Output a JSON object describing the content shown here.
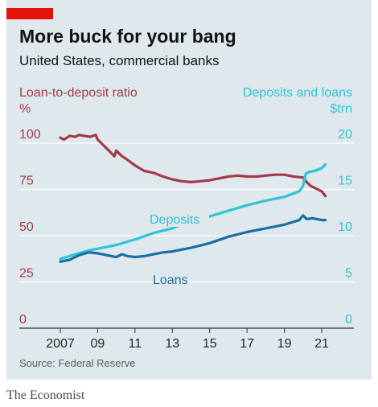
{
  "header": {
    "title": "More buck for your bang",
    "subtitle": "United States, commercial banks"
  },
  "footer": {
    "source": "Source: Federal Reserve",
    "brand": "The Economist"
  },
  "colors": {
    "ratio": "#a23a4a",
    "deposits": "#2ec3d6",
    "loans": "#1a6ea5",
    "brand_red": "#e3120b",
    "background": "#dfe9ed"
  },
  "chart_data": {
    "type": "line",
    "left_axis": {
      "label": "Loan-to-deposit ratio",
      "unit": "%",
      "ticks": [
        "100",
        "75",
        "50",
        "25",
        "0"
      ],
      "range": [
        0,
        100
      ]
    },
    "right_axis": {
      "label": "Deposits and loans",
      "unit": "$trn",
      "ticks": [
        "20",
        "15",
        "10",
        "5",
        "0"
      ],
      "range": [
        0,
        20
      ]
    },
    "x_ticks": [
      "2007",
      "09",
      "11",
      "13",
      "15",
      "17",
      "19",
      "21"
    ],
    "x_range": [
      2006,
      2022
    ],
    "annotations": {
      "deposits": "Deposits",
      "loans": "Loans"
    },
    "series": [
      {
        "name": "Loan-to-deposit ratio",
        "axis": "left",
        "points": [
          [
            2007.0,
            96
          ],
          [
            2007.2,
            95
          ],
          [
            2007.5,
            97
          ],
          [
            2007.8,
            96.5
          ],
          [
            2008.0,
            97.5
          ],
          [
            2008.3,
            97
          ],
          [
            2008.6,
            96.5
          ],
          [
            2008.9,
            97.5
          ],
          [
            2009.0,
            95
          ],
          [
            2009.3,
            92
          ],
          [
            2009.6,
            89
          ],
          [
            2009.9,
            86
          ],
          [
            2010.0,
            89
          ],
          [
            2010.3,
            86
          ],
          [
            2010.6,
            84
          ],
          [
            2011.0,
            81
          ],
          [
            2011.5,
            78
          ],
          [
            2012.0,
            77
          ],
          [
            2012.5,
            75
          ],
          [
            2013.0,
            73.5
          ],
          [
            2013.5,
            72.5
          ],
          [
            2014.0,
            72
          ],
          [
            2014.5,
            72.5
          ],
          [
            2015.0,
            73
          ],
          [
            2015.5,
            74
          ],
          [
            2016.0,
            75
          ],
          [
            2016.5,
            75.5
          ],
          [
            2017.0,
            75
          ],
          [
            2017.5,
            75
          ],
          [
            2018.0,
            75.5
          ],
          [
            2018.5,
            76
          ],
          [
            2019.0,
            76
          ],
          [
            2019.5,
            75
          ],
          [
            2020.0,
            74.5
          ],
          [
            2020.2,
            72
          ],
          [
            2020.4,
            70
          ],
          [
            2020.7,
            68.5
          ],
          [
            2021.0,
            67
          ],
          [
            2021.2,
            64.5
          ]
        ]
      },
      {
        "name": "Deposits",
        "axis": "right",
        "points": [
          [
            2007.0,
            6.1
          ],
          [
            2007.5,
            6.4
          ],
          [
            2008.0,
            6.7
          ],
          [
            2008.5,
            7.0
          ],
          [
            2009.0,
            7.2
          ],
          [
            2009.5,
            7.4
          ],
          [
            2010.0,
            7.6
          ],
          [
            2011.0,
            8.2
          ],
          [
            2012.0,
            8.9
          ],
          [
            2013.0,
            9.4
          ],
          [
            2014.0,
            10.2
          ],
          [
            2015.0,
            10.7
          ],
          [
            2016.0,
            11.3
          ],
          [
            2017.0,
            11.9
          ],
          [
            2018.0,
            12.4
          ],
          [
            2019.0,
            12.8
          ],
          [
            2019.8,
            13.4
          ],
          [
            2020.0,
            14.0
          ],
          [
            2020.15,
            15.3
          ],
          [
            2020.3,
            15.5
          ],
          [
            2020.6,
            15.6
          ],
          [
            2021.0,
            15.9
          ],
          [
            2021.2,
            16.3
          ]
        ]
      },
      {
        "name": "Loans",
        "axis": "right",
        "points": [
          [
            2007.0,
            5.8
          ],
          [
            2007.5,
            6.0
          ],
          [
            2008.0,
            6.5
          ],
          [
            2008.5,
            6.8
          ],
          [
            2009.0,
            6.7
          ],
          [
            2009.5,
            6.5
          ],
          [
            2010.0,
            6.3
          ],
          [
            2010.3,
            6.6
          ],
          [
            2010.6,
            6.4
          ],
          [
            2011.0,
            6.3
          ],
          [
            2011.5,
            6.4
          ],
          [
            2012.0,
            6.6
          ],
          [
            2012.5,
            6.8
          ],
          [
            2013.0,
            6.9
          ],
          [
            2014.0,
            7.3
          ],
          [
            2015.0,
            7.8
          ],
          [
            2016.0,
            8.5
          ],
          [
            2017.0,
            9.0
          ],
          [
            2018.0,
            9.4
          ],
          [
            2019.0,
            9.8
          ],
          [
            2019.8,
            10.3
          ],
          [
            2020.0,
            10.8
          ],
          [
            2020.2,
            10.4
          ],
          [
            2020.5,
            10.5
          ],
          [
            2021.0,
            10.3
          ],
          [
            2021.2,
            10.3
          ]
        ]
      }
    ]
  }
}
